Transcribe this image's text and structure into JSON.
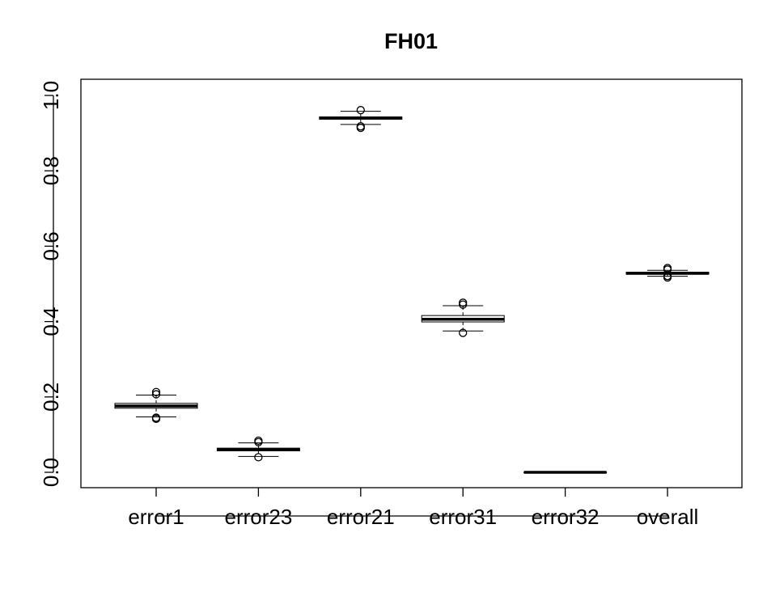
{
  "chart_data": {
    "type": "boxplot",
    "title": "FH01",
    "xlabel": "",
    "ylabel": "",
    "ylim": [
      0.0,
      1.0
    ],
    "y_ticks": [
      "0.0",
      "0.2",
      "0.4",
      "0.6",
      "0.8",
      "1.0"
    ],
    "y_tick_values": [
      0.0,
      0.2,
      0.4,
      0.6,
      0.8,
      1.0
    ],
    "grid": false,
    "categories": [
      "error1",
      "error23",
      "error21",
      "error31",
      "error32",
      "overall"
    ],
    "boxes": [
      {
        "name": "error1",
        "whisker_low": 0.147,
        "q1": 0.17,
        "median": 0.176,
        "q3": 0.183,
        "whisker_high": 0.205,
        "outliers": [
          0.142,
          0.145,
          0.207,
          0.213
        ]
      },
      {
        "name": "error23",
        "whisker_low": 0.042,
        "q1": 0.057,
        "median": 0.061,
        "q3": 0.064,
        "whisker_high": 0.078,
        "outliers": [
          0.04,
          0.08,
          0.084
        ]
      },
      {
        "name": "error21",
        "whisker_low": 0.923,
        "q1": 0.937,
        "median": 0.94,
        "q3": 0.943,
        "whisker_high": 0.958,
        "outliers": [
          0.914,
          0.918,
          0.961
        ]
      },
      {
        "name": "error31",
        "whisker_low": 0.375,
        "q1": 0.399,
        "median": 0.406,
        "q3": 0.416,
        "whisker_high": 0.442,
        "outliers": [
          0.37,
          0.445,
          0.45
        ]
      },
      {
        "name": "error32",
        "whisker_low": 0.0,
        "q1": 0.0,
        "median": 0.0,
        "q3": 0.0,
        "whisker_high": 0.0,
        "outliers": []
      },
      {
        "name": "overall",
        "whisker_low": 0.52,
        "q1": 0.526,
        "median": 0.528,
        "q3": 0.531,
        "whisker_high": 0.536,
        "outliers": [
          0.517,
          0.521,
          0.538,
          0.542
        ]
      }
    ]
  }
}
